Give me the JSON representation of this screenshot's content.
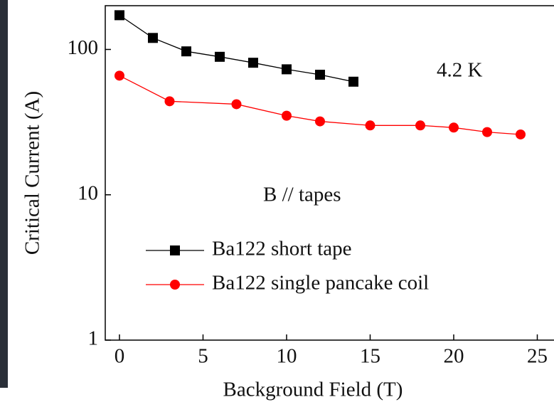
{
  "chart_data": {
    "type": "line",
    "x_label": "Background Field (T)",
    "y_label": "Critical Current (A)",
    "annotations": [
      "4.2 K",
      "B // tapes"
    ],
    "log_y": true,
    "xlim": [
      -0.85,
      26
    ],
    "xticks": [
      0,
      5,
      10,
      15,
      20,
      25
    ],
    "ylim": [
      1,
      200
    ],
    "yticks": [
      1,
      10,
      100
    ],
    "series": [
      {
        "name": "Ba122 short tape",
        "color": "#000000",
        "marker": "square",
        "x": [
          0,
          2,
          4,
          6,
          8,
          10,
          12,
          14
        ],
        "values": [
          172,
          120,
          97,
          89,
          81,
          73,
          67,
          60
        ]
      },
      {
        "name": "Ba122 single pancake coil",
        "color": "#ff0000",
        "marker": "circle",
        "x": [
          0,
          3,
          7,
          10,
          12,
          15,
          18,
          20,
          22,
          24
        ],
        "values": [
          66,
          44,
          42,
          35,
          32,
          30,
          30,
          29,
          27,
          26
        ]
      }
    ]
  }
}
